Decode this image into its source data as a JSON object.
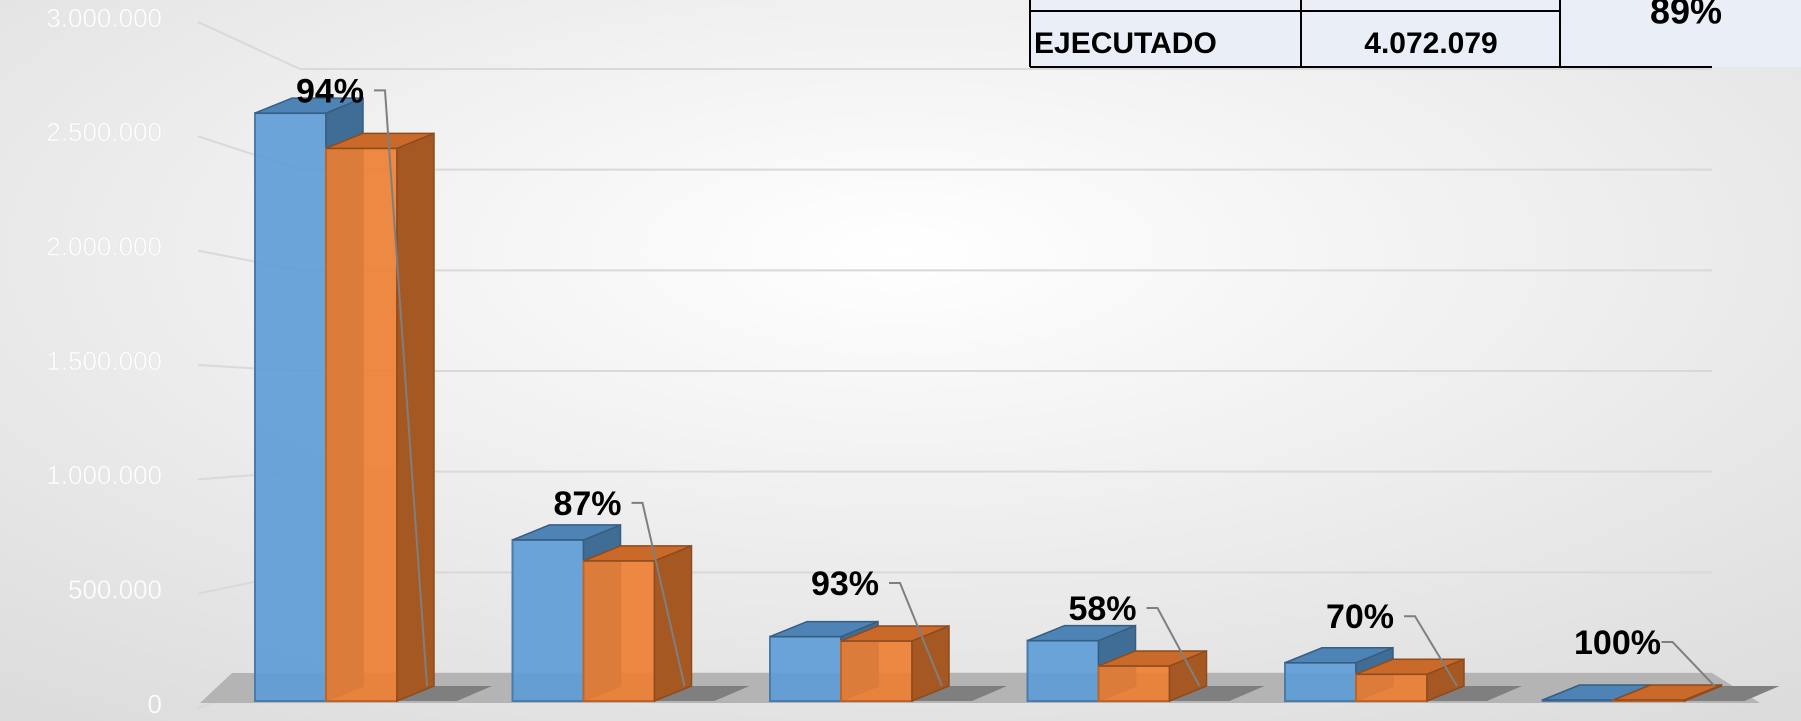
{
  "chart_data": {
    "type": "bar3d",
    "series": [
      {
        "color": "#5b9bd5",
        "values": [
          2920000,
          800000,
          320000,
          300000,
          190000,
          5000
        ]
      },
      {
        "color": "#ed7d31",
        "values": [
          2745000,
          696000,
          298000,
          174000,
          133000,
          5000
        ]
      }
    ],
    "percent_labels": [
      "94%",
      "87%",
      "93%",
      "58%",
      "70%",
      "100%"
    ],
    "ylim": [
      0,
      3000000
    ],
    "yticks": [
      {
        "value": 0,
        "label": "0"
      },
      {
        "value": 500000,
        "label": "500.000"
      },
      {
        "value": 1000000,
        "label": "1.000.000"
      },
      {
        "value": 1500000,
        "label": "1.500.000"
      },
      {
        "value": 2000000,
        "label": "2.000.000"
      },
      {
        "value": 2500000,
        "label": "2.500.000"
      },
      {
        "value": 3000000,
        "label": "3.000.000"
      }
    ],
    "grid": true
  },
  "table": {
    "rows": [
      [
        "EJECUTADO",
        "4.072.079"
      ]
    ],
    "merged": "89%"
  }
}
